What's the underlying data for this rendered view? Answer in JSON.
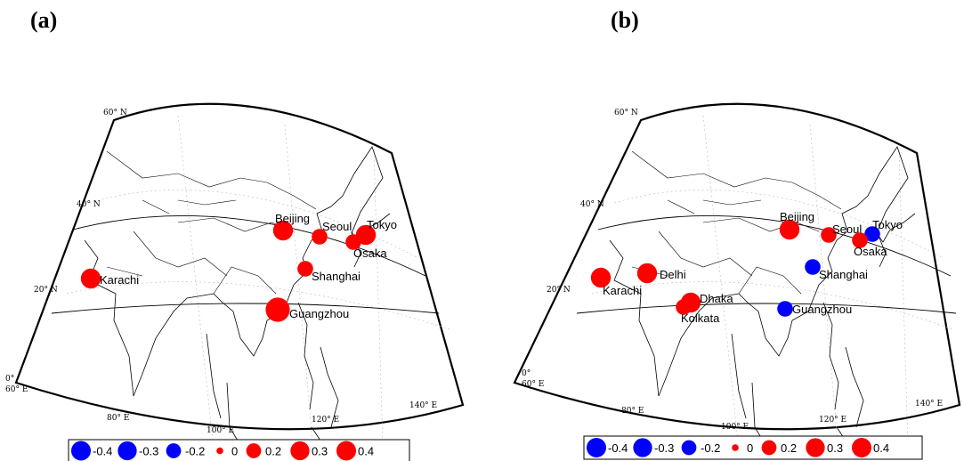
{
  "panels": [
    {
      "id": "a",
      "label": "(a)",
      "cities": [
        {
          "name": "Beijing",
          "value": 0.3
        },
        {
          "name": "Seoul",
          "value": 0.2
        },
        {
          "name": "Tokyo",
          "value": 0.3
        },
        {
          "name": "Osaka",
          "value": 0.2
        },
        {
          "name": "Shanghai",
          "value": 0.2
        },
        {
          "name": "Karachi",
          "value": 0.3
        },
        {
          "name": "Guangzhou",
          "value": 0.4
        }
      ]
    },
    {
      "id": "b",
      "label": "(b)",
      "cities": [
        {
          "name": "Beijing",
          "value": 0.3
        },
        {
          "name": "Seoul",
          "value": 0.2
        },
        {
          "name": "Tokyo",
          "value": -0.2
        },
        {
          "name": "Osaka",
          "value": 0.2
        },
        {
          "name": "Shanghai",
          "value": -0.2
        },
        {
          "name": "Delhi",
          "value": 0.3
        },
        {
          "name": "Karachi",
          "value": 0.3
        },
        {
          "name": "Dhaka",
          "value": 0.3
        },
        {
          "name": "Kolkata",
          "value": 0.2
        },
        {
          "name": "Guangzhou",
          "value": -0.2
        }
      ]
    }
  ],
  "map_labels": {
    "lat60": "60° N",
    "lat40": "40° N",
    "lat20": "20° N",
    "lat0": "0°",
    "lon60": "60° E",
    "lon80": "80° E",
    "lon100": "100° E",
    "lon120": "120° E",
    "lon140": "140° E"
  },
  "legend": {
    "items": [
      {
        "label": "-0.4",
        "value": -0.4
      },
      {
        "label": "-0.3",
        "value": -0.3
      },
      {
        "label": "-0.2",
        "value": -0.2
      },
      {
        "label": "0",
        "value": 0
      },
      {
        "label": "0.2",
        "value": 0.2
      },
      {
        "label": "0.3",
        "value": 0.3
      },
      {
        "label": "0.4",
        "value": 0.4
      }
    ]
  },
  "colors": {
    "positive": "#ff0000",
    "negative": "#0000ff"
  }
}
